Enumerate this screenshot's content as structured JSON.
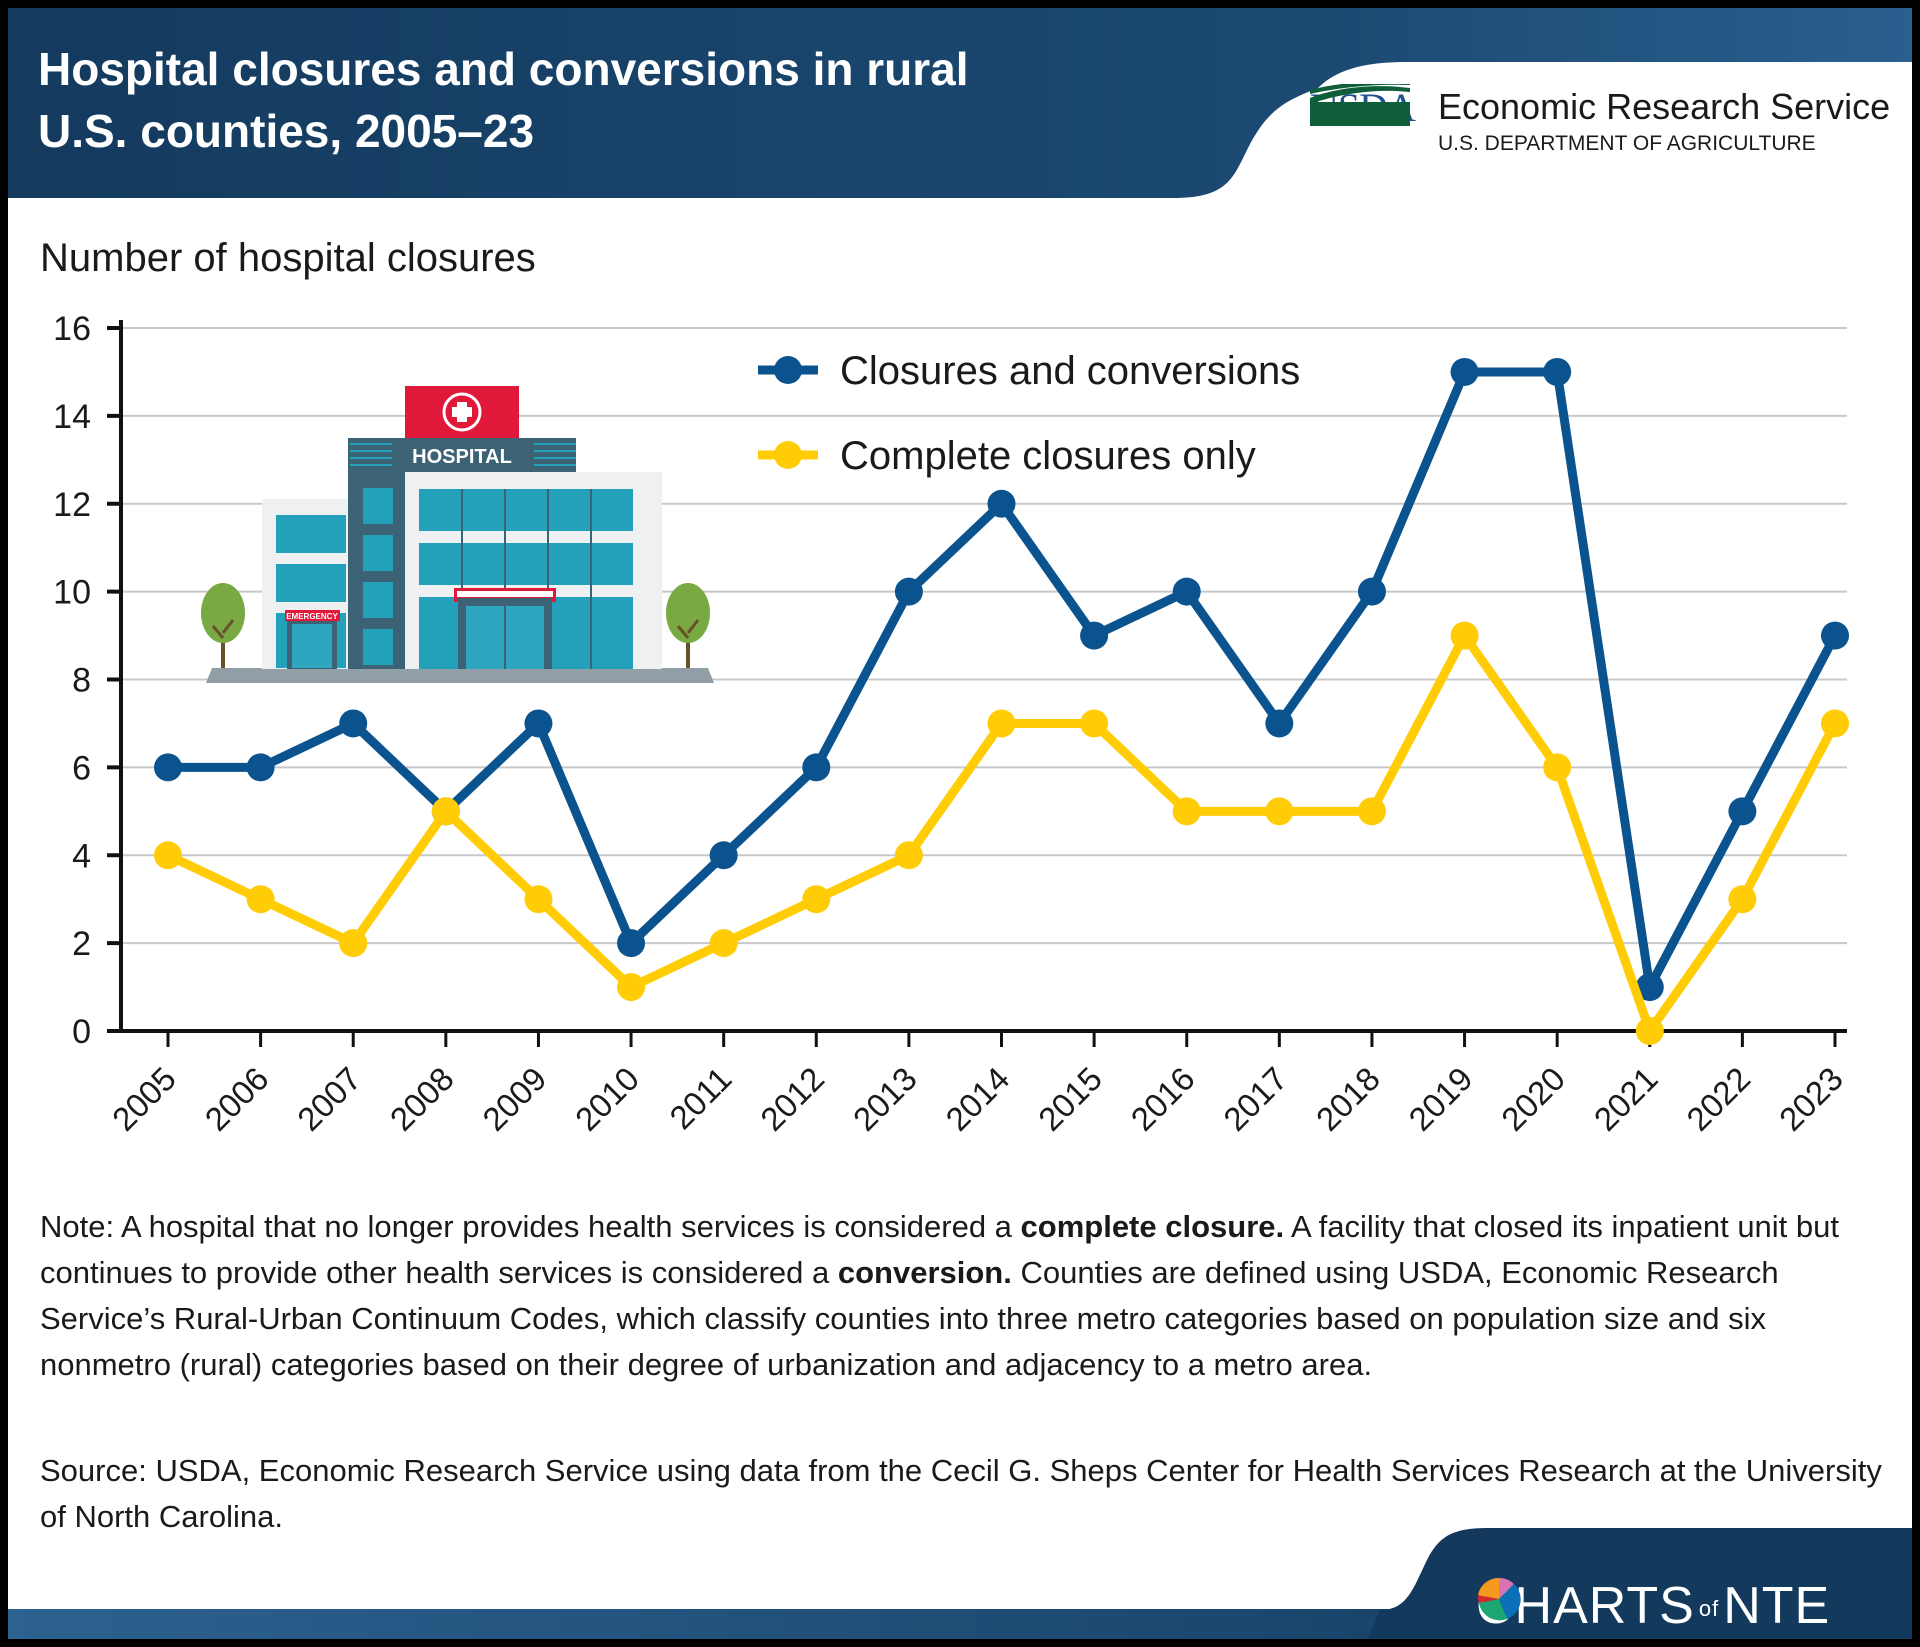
{
  "header": {
    "title_line1": "Hospital closures and conversions in rural",
    "title_line2": "U.S. counties, 2005–23",
    "logo": {
      "wordmark": "USDA",
      "agency": "Economic Research Service",
      "department": "U.S. DEPARTMENT OF AGRICULTURE"
    }
  },
  "illustration": {
    "sign_text": "HOSPITAL",
    "emergency_text": "EMERGENCY"
  },
  "colors": {
    "header_bg": "#173e63",
    "series_blue": "#0b538e",
    "series_yellow": "#ffcc05",
    "grid": "#c8c8c8"
  },
  "chart_data": {
    "type": "line",
    "title": "Hospital closures and conversions in rural U.S. counties, 2005–23",
    "ylabel": "Number of hospital closures",
    "xlabel": "",
    "ylim": [
      0,
      16
    ],
    "yticks": [
      0,
      2,
      4,
      6,
      8,
      10,
      12,
      14,
      16
    ],
    "grid": true,
    "legend_position": "top-center",
    "categories": [
      "2005",
      "2006",
      "2007",
      "2008",
      "2009",
      "2010",
      "2011",
      "2012",
      "2013",
      "2014",
      "2015",
      "2016",
      "2017",
      "2018",
      "2019",
      "2020",
      "2021",
      "2022",
      "2023"
    ],
    "series": [
      {
        "name": "Closures and conversions",
        "color": "#0b538e",
        "values": [
          6,
          6,
          7,
          5,
          7,
          2,
          4,
          6,
          10,
          12,
          9,
          10,
          7,
          10,
          15,
          15,
          1,
          5,
          9
        ]
      },
      {
        "name": "Complete closures only",
        "color": "#ffcc05",
        "values": [
          4,
          3,
          2,
          5,
          3,
          1,
          2,
          3,
          4,
          7,
          7,
          5,
          5,
          5,
          9,
          6,
          0,
          3,
          7
        ]
      }
    ]
  },
  "notes": {
    "note_parts": [
      {
        "text": "Note: A hospital that no longer provides health services is considered a ",
        "bold": false
      },
      {
        "text": "complete closure.",
        "bold": true
      },
      {
        "text": " A facility that closed its inpatient unit but continues to provide other health services is considered a ",
        "bold": false
      },
      {
        "text": "conversion.",
        "bold": true
      },
      {
        "text": " Counties are defined using USDA, Economic Research Service’s Rural-Urban Continuum Codes, which classify counties into three metro categories based on population size and six nonmetro (rural) categories based on their degree of urbanization and adjacency to a metro area.",
        "bold": false
      }
    ],
    "source": "Source: USDA, Economic Research Service using data from the Cecil G. Sheps Center for Health Services Research at the University of North Carolina."
  },
  "footer": {
    "brand_part1": "CHARTS",
    "brand_of": "of",
    "brand_n": "N",
    "brand_part2": "TE"
  }
}
